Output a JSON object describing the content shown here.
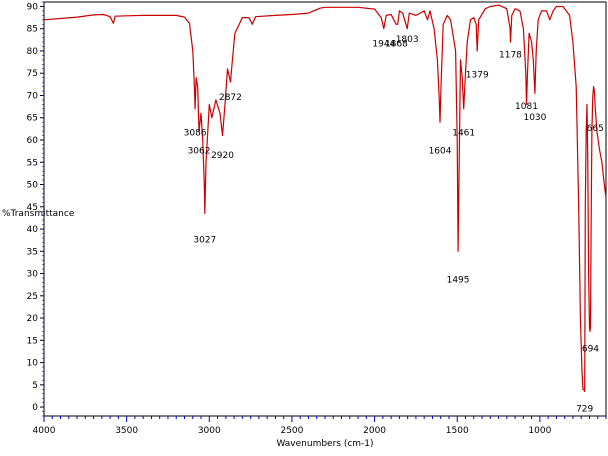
{
  "chart_data": {
    "type": "line",
    "title": "",
    "xlabel": "Wavenumbers (cm-1)",
    "ylabel": "%Transmittance",
    "xlim": [
      4000,
      600
    ],
    "ylim": [
      -2,
      91
    ],
    "x_reversed": true,
    "grid": false,
    "legend": "none",
    "x_ticks": [
      4000,
      3500,
      3000,
      2500,
      2000,
      1500,
      1000
    ],
    "y_ticks": [
      0,
      5,
      10,
      15,
      20,
      25,
      30,
      35,
      40,
      45,
      50,
      55,
      60,
      65,
      70,
      75,
      80,
      85,
      90
    ],
    "series": [
      {
        "color": "#cc0000",
        "points": [
          [
            4000,
            87.0
          ],
          [
            3900,
            87.3
          ],
          [
            3800,
            87.6
          ],
          [
            3700,
            88.1
          ],
          [
            3640,
            88.2
          ],
          [
            3600,
            87.7
          ],
          [
            3580,
            86.2
          ],
          [
            3570,
            87.8
          ],
          [
            3500,
            87.9
          ],
          [
            3400,
            88.0
          ],
          [
            3300,
            88.0
          ],
          [
            3200,
            88.0
          ],
          [
            3150,
            87.6
          ],
          [
            3120,
            86.2
          ],
          [
            3100,
            80.0
          ],
          [
            3090,
            72.0
          ],
          [
            3086,
            67.0
          ],
          [
            3080,
            74.0
          ],
          [
            3070,
            72.0
          ],
          [
            3062,
            62.0
          ],
          [
            3050,
            66.0
          ],
          [
            3040,
            60.0
          ],
          [
            3030,
            50.0
          ],
          [
            3027,
            43.5
          ],
          [
            3020,
            55.0
          ],
          [
            3000,
            68.0
          ],
          [
            2985,
            65.0
          ],
          [
            2960,
            69.0
          ],
          [
            2935,
            66.0
          ],
          [
            2920,
            61.0
          ],
          [
            2905,
            68.0
          ],
          [
            2890,
            76.0
          ],
          [
            2872,
            73.0
          ],
          [
            2860,
            78.0
          ],
          [
            2845,
            84.0
          ],
          [
            2800,
            87.5
          ],
          [
            2760,
            87.5
          ],
          [
            2740,
            86.0
          ],
          [
            2720,
            87.7
          ],
          [
            2600,
            88.0
          ],
          [
            2500,
            88.2
          ],
          [
            2400,
            88.5
          ],
          [
            2330,
            89.6
          ],
          [
            2300,
            89.8
          ],
          [
            2200,
            89.8
          ],
          [
            2100,
            89.8
          ],
          [
            2000,
            89.4
          ],
          [
            1960,
            87.5
          ],
          [
            1944,
            85.0
          ],
          [
            1930,
            88.0
          ],
          [
            1900,
            88.2
          ],
          [
            1870,
            86.0
          ],
          [
            1860,
            86.0
          ],
          [
            1850,
            89.0
          ],
          [
            1830,
            88.5
          ],
          [
            1803,
            85.0
          ],
          [
            1790,
            88.5
          ],
          [
            1750,
            88.0
          ],
          [
            1700,
            89.0
          ],
          [
            1680,
            87.0
          ],
          [
            1665,
            89.0
          ],
          [
            1640,
            85.0
          ],
          [
            1620,
            78.0
          ],
          [
            1610,
            70.0
          ],
          [
            1604,
            64.0
          ],
          [
            1598,
            72.0
          ],
          [
            1585,
            86.0
          ],
          [
            1560,
            88.0
          ],
          [
            1540,
            87.0
          ],
          [
            1510,
            80.0
          ],
          [
            1500,
            60.0
          ],
          [
            1495,
            35.0
          ],
          [
            1490,
            50.0
          ],
          [
            1480,
            78.0
          ],
          [
            1470,
            74.0
          ],
          [
            1461,
            67.0
          ],
          [
            1450,
            75.0
          ],
          [
            1440,
            82.0
          ],
          [
            1420,
            87.0
          ],
          [
            1400,
            87.5
          ],
          [
            1385,
            86.0
          ],
          [
            1379,
            80.0
          ],
          [
            1370,
            87.0
          ],
          [
            1330,
            89.5
          ],
          [
            1300,
            90.0
          ],
          [
            1250,
            90.3
          ],
          [
            1200,
            89.5
          ],
          [
            1180,
            85.0
          ],
          [
            1178,
            82.0
          ],
          [
            1170,
            88.0
          ],
          [
            1150,
            89.5
          ],
          [
            1120,
            89.0
          ],
          [
            1100,
            85.0
          ],
          [
            1085,
            75.0
          ],
          [
            1081,
            68.0
          ],
          [
            1075,
            75.0
          ],
          [
            1065,
            84.0
          ],
          [
            1050,
            82.0
          ],
          [
            1040,
            78.0
          ],
          [
            1030,
            70.5
          ],
          [
            1022,
            80.0
          ],
          [
            1010,
            87.0
          ],
          [
            990,
            89.0
          ],
          [
            960,
            89.0
          ],
          [
            940,
            87.0
          ],
          [
            920,
            89.0
          ],
          [
            900,
            90.0
          ],
          [
            860,
            90.0
          ],
          [
            820,
            88.0
          ],
          [
            800,
            82.0
          ],
          [
            780,
            72.0
          ],
          [
            765,
            45.0
          ],
          [
            755,
            20.0
          ],
          [
            745,
            8.0
          ],
          [
            740,
            4.0
          ],
          [
            735,
            4.0
          ],
          [
            729,
            3.5
          ],
          [
            725,
            45.0
          ],
          [
            720,
            62.0
          ],
          [
            715,
            68.0
          ],
          [
            710,
            55.0
          ],
          [
            705,
            30.0
          ],
          [
            700,
            18.0
          ],
          [
            697,
            17.0
          ],
          [
            694,
            18.0
          ],
          [
            690,
            40.0
          ],
          [
            685,
            62.0
          ],
          [
            680,
            70.0
          ],
          [
            675,
            72.0
          ],
          [
            670,
            71.0
          ],
          [
            665,
            67.0
          ],
          [
            655,
            62.0
          ],
          [
            640,
            58.0
          ],
          [
            625,
            55.0
          ],
          [
            610,
            50.0
          ],
          [
            600,
            47.0
          ]
        ]
      }
    ],
    "peak_labels": [
      {
        "text": "3086",
        "x": 3086,
        "y": 61.0
      },
      {
        "text": "3062",
        "x": 3062,
        "y": 57.0
      },
      {
        "text": "3027",
        "x": 3027,
        "y": 37.0
      },
      {
        "text": "2920",
        "x": 2920,
        "y": 56.0
      },
      {
        "text": "2872",
        "x": 2872,
        "y": 69.0
      },
      {
        "text": "1944",
        "x": 1944,
        "y": 81.0
      },
      {
        "text": "1868",
        "x": 1868,
        "y": 81.0
      },
      {
        "text": "1803",
        "x": 1803,
        "y": 82.0
      },
      {
        "text": "1604",
        "x": 1604,
        "y": 57.0
      },
      {
        "text": "1495",
        "x": 1495,
        "y": 28.0
      },
      {
        "text": "1461",
        "x": 1461,
        "y": 61.0
      },
      {
        "text": "1379",
        "x": 1379,
        "y": 74.0
      },
      {
        "text": "1178",
        "x": 1178,
        "y": 78.5
      },
      {
        "text": "1081",
        "x": 1081,
        "y": 67.0
      },
      {
        "text": "1030",
        "x": 1030,
        "y": 64.5
      },
      {
        "text": "665",
        "x": 665,
        "y": 62.0
      },
      {
        "text": "694",
        "x": 694,
        "y": 12.5
      },
      {
        "text": "729",
        "x": 729,
        "y": -1.0
      }
    ]
  }
}
